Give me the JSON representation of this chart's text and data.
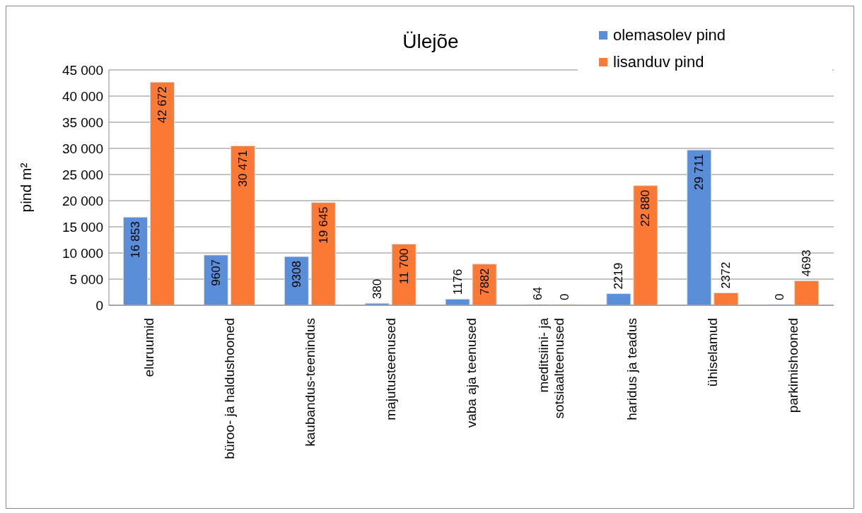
{
  "chart_data": {
    "type": "bar",
    "title": "Ülejõe",
    "ylabel": "pind m²",
    "categories": [
      "eluruumid",
      "büroo- ja haldushooned",
      "kaubandus-teenindus",
      "majutusteenused",
      "vaba aja teenused",
      "meditsiini- ja sotsiaalteenused",
      "haridus ja teadus",
      "ühiselamud",
      "parkimishooned"
    ],
    "series": [
      {
        "name": "olemasolev pind",
        "color": "#5a8ed8",
        "values": [
          16853,
          9607,
          9308,
          380,
          1176,
          64,
          2219,
          29711,
          0
        ],
        "value_labels": [
          "16 853",
          "9607",
          "9308",
          "380",
          "1176",
          "64",
          "2219",
          "29 711",
          "0"
        ]
      },
      {
        "name": "lisanduv pind",
        "color": "#fa7a35",
        "values": [
          42672,
          30471,
          19645,
          11700,
          7882,
          0,
          22880,
          2372,
          4693
        ],
        "value_labels": [
          "42 672",
          "30 471",
          "19 645",
          "11 700",
          "7882",
          "0",
          "22 880",
          "2372",
          "4693"
        ]
      }
    ],
    "ylim": [
      0,
      45000
    ],
    "yticks": [
      0,
      {
        "value": 5000,
        "label": "5 000"
      },
      {
        "value": 10000,
        "label": "10 000"
      },
      {
        "value": 15000,
        "label": "15 000"
      },
      {
        "value": 20000,
        "label": "20 000"
      },
      {
        "value": 25000,
        "label": "25 000"
      },
      {
        "value": 30000,
        "label": "30 000"
      },
      {
        "value": 35000,
        "label": "35 000"
      },
      {
        "value": 40000,
        "label": "40 000"
      },
      {
        "value": 45000,
        "label": "45 000"
      }
    ],
    "grid": "y",
    "legend": "top right"
  }
}
